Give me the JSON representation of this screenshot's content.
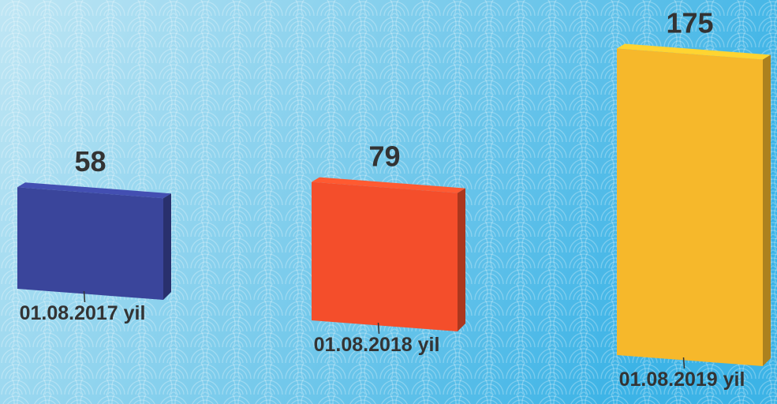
{
  "chart_data": {
    "type": "bar",
    "categories": [
      "01.08.2017 yil",
      "01.08.2018 yil",
      "01.08.2019 yil"
    ],
    "values": [
      58,
      79,
      175
    ],
    "colors": [
      "#3a459b",
      "#f44e2b",
      "#f6b82b"
    ]
  }
}
